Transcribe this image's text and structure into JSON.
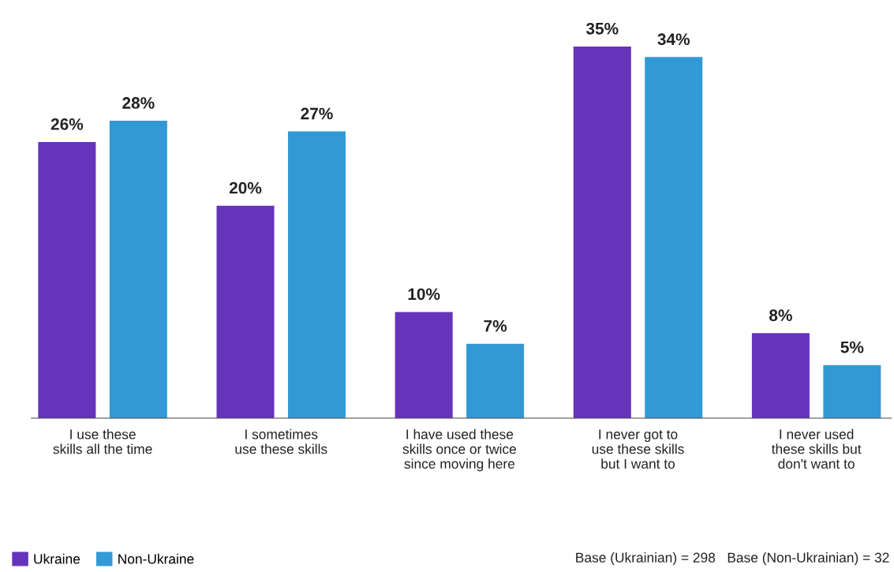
{
  "chart_data": {
    "type": "bar",
    "categories": [
      "I use these\nskills all the time",
      "I sometimes\nuse these skills",
      "I have used these\nskills once or twice\nsince moving here",
      "I never got to\nuse these skills\nbut I want to",
      "I never used\nthese skills but\ndon't want to"
    ],
    "series": [
      {
        "name": "Ukraine",
        "color": "#6633bb",
        "values": [
          26,
          20,
          10,
          35,
          8
        ],
        "value_labels": [
          "26%",
          "20%",
          "10%",
          "35%",
          "8%"
        ]
      },
      {
        "name": "Non-Ukraine",
        "color": "#3399d6",
        "values": [
          28,
          27,
          7,
          34,
          5
        ],
        "value_labels": [
          "28%",
          "27%",
          "7%",
          "34%",
          "5%"
        ]
      }
    ],
    "annotations": [
      "Base (Ukrainian) = 298   Base (Non-Ukrainian) = 32"
    ],
    "legend": "bottom left",
    "grid": false
  }
}
